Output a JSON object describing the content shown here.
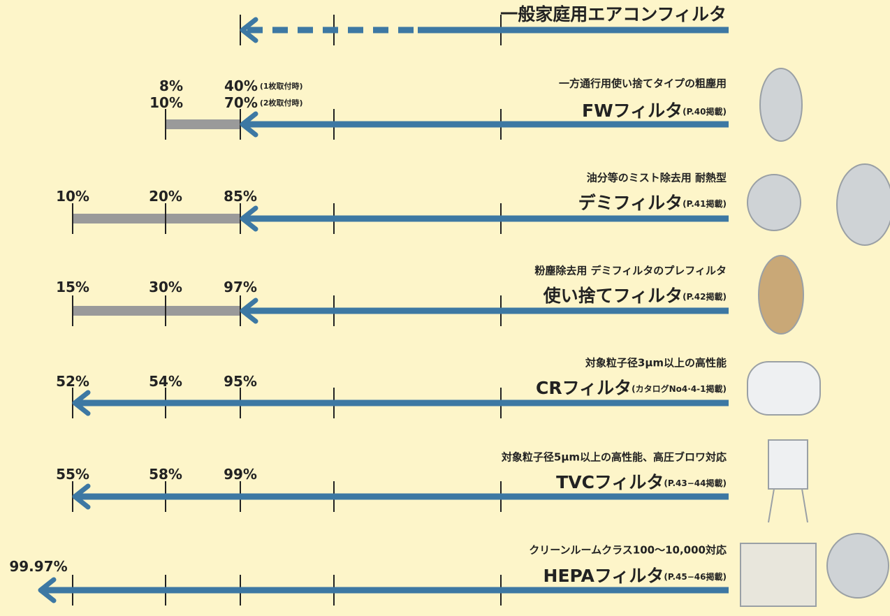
{
  "rows": [
    {
      "title": "一般家庭用エアコンフィルタ"
    },
    {
      "subtitle": "一方通行用使い捨てタイプの粗塵用",
      "title": "FWフィルタ",
      "ref": "(P.40掲載)",
      "labels": [
        {
          "text": "8%"
        },
        {
          "text": "10%"
        },
        {
          "text": "40%",
          "note": "(1枚取付時)"
        },
        {
          "text": "70%",
          "note": "(2枚取付時)"
        }
      ]
    },
    {
      "subtitle": "油分等のミスト除去用 耐熱型",
      "title": "デミフィルタ",
      "ref": "(P.41掲載)",
      "labels": [
        {
          "text": "10%"
        },
        {
          "text": "20%"
        },
        {
          "text": "85%"
        }
      ]
    },
    {
      "subtitle": "粉塵除去用 デミフィルタのプレフィルタ",
      "title": "使い捨てフィルタ",
      "ref": "(P.42掲載)",
      "labels": [
        {
          "text": "15%"
        },
        {
          "text": "30%"
        },
        {
          "text": "97%"
        }
      ]
    },
    {
      "subtitle": "対象粒子径3μm以上の高性能",
      "title": "CRフィルタ",
      "ref": "(カタログNo4·4-1掲載)",
      "labels": [
        {
          "text": "52%"
        },
        {
          "text": "54%"
        },
        {
          "text": "95%"
        }
      ]
    },
    {
      "subtitle": "対象粒子径5μm以上の高性能、高圧ブロワ対応",
      "title": "TVCフィルタ",
      "ref": "(P.43−44掲載)",
      "labels": [
        {
          "text": "55%"
        },
        {
          "text": "58%"
        },
        {
          "text": "99%"
        }
      ]
    },
    {
      "subtitle": "クリーンルームクラス100〜10,000対応",
      "title": "HEPAフィルタ",
      "ref": "(P.45−46掲載)",
      "labels": [
        {
          "text": "99.97%"
        }
      ]
    }
  ]
}
